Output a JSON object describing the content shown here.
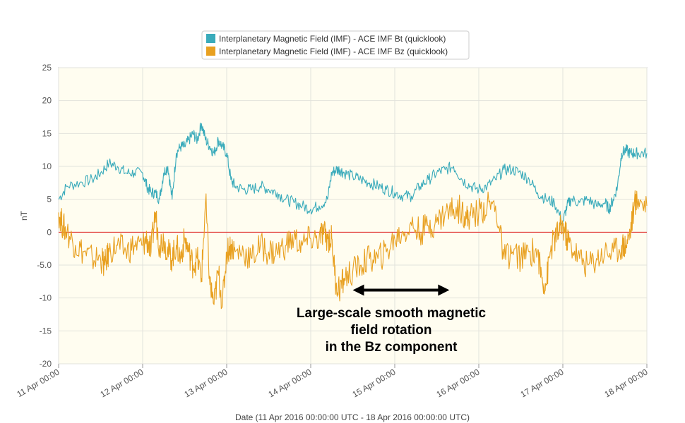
{
  "chart_data": {
    "type": "line",
    "title": "",
    "xlabel": "Date (11 Apr 2016 00:00:00 UTC - 18 Apr 2016 00:00:00 UTC)",
    "ylabel": "nT",
    "ylim": [
      -20,
      25
    ],
    "xlim_days": [
      0,
      7
    ],
    "y_ticks": [
      "25",
      "20",
      "15",
      "10",
      "5",
      "0",
      "-5.0",
      "-10",
      "-15",
      "-20"
    ],
    "x_ticks": [
      "11 Apr 00:00",
      "12 Apr 00:00",
      "13 Apr 00:00",
      "14 Apr 00:00",
      "15 Apr 00:00",
      "16 Apr 00:00",
      "17 Apr 00:00",
      "18 Apr 00:00"
    ],
    "grid": true,
    "legend": "top",
    "background": "#fffdf0",
    "reference_line": {
      "y": 0,
      "color": "#e02020"
    },
    "series": [
      {
        "name": "Interplanetary Magnetic Field (IMF) - ACE IMF Bt (quicklook)",
        "color": "#3aabbb",
        "x": [
          0.0,
          0.1,
          0.25,
          0.4,
          0.5,
          0.6,
          0.7,
          0.8,
          0.9,
          1.0,
          1.05,
          1.1,
          1.15,
          1.2,
          1.25,
          1.3,
          1.35,
          1.4,
          1.45,
          1.5,
          1.55,
          1.6,
          1.65,
          1.7,
          1.75,
          1.8,
          1.85,
          1.9,
          1.95,
          2.0,
          2.05,
          2.1,
          2.2,
          2.3,
          2.4,
          2.5,
          2.6,
          2.7,
          2.8,
          2.9,
          3.0,
          3.1,
          3.2,
          3.25,
          3.3,
          3.35,
          3.4,
          3.5,
          3.6,
          3.7,
          3.8,
          3.9,
          4.0,
          4.1,
          4.2,
          4.3,
          4.4,
          4.5,
          4.6,
          4.7,
          4.8,
          4.9,
          5.0,
          5.1,
          5.2,
          5.3,
          5.4,
          5.5,
          5.6,
          5.7,
          5.8,
          5.9,
          6.0,
          6.05,
          6.1,
          6.2,
          6.3,
          6.4,
          6.5,
          6.55,
          6.6,
          6.65,
          6.7,
          6.75,
          6.8,
          6.85,
          6.9,
          7.0
        ],
        "y": [
          5,
          7,
          7.5,
          8,
          9,
          10.5,
          10,
          9,
          9,
          9,
          7,
          6,
          6,
          5,
          9,
          10,
          5,
          12,
          13,
          13,
          14,
          15,
          14,
          16.5,
          14,
          13,
          12,
          14,
          13,
          12,
          8,
          7,
          6.5,
          6.5,
          7,
          6.5,
          6,
          5,
          4.5,
          4,
          3.5,
          4,
          5,
          9,
          9.5,
          9.5,
          9,
          8.5,
          8,
          7.5,
          7,
          6.5,
          6,
          5.5,
          5.5,
          7,
          8,
          9,
          9.5,
          10,
          8,
          7,
          6.5,
          7,
          8,
          9.5,
          9.5,
          9,
          8,
          6,
          5,
          4.5,
          1.5,
          4,
          5,
          4.5,
          5,
          4,
          4.5,
          3.5,
          5,
          7,
          12,
          12.5,
          12,
          12,
          12,
          12
        ]
      },
      {
        "name": "Interplanetary Magnetic Field (IMF) - ACE IMF Bz (quicklook)",
        "color": "#e8a020",
        "x": [
          0.0,
          0.05,
          0.1,
          0.2,
          0.3,
          0.4,
          0.5,
          0.55,
          0.6,
          0.7,
          0.8,
          0.9,
          1.0,
          1.05,
          1.1,
          1.15,
          1.2,
          1.25,
          1.3,
          1.35,
          1.4,
          1.45,
          1.5,
          1.55,
          1.6,
          1.65,
          1.7,
          1.75,
          1.8,
          1.85,
          1.9,
          1.95,
          2.0,
          2.05,
          2.1,
          2.2,
          2.3,
          2.4,
          2.5,
          2.6,
          2.7,
          2.8,
          2.9,
          3.0,
          3.1,
          3.15,
          3.2,
          3.25,
          3.3,
          3.35,
          3.4,
          3.5,
          3.6,
          3.7,
          3.8,
          3.9,
          4.0,
          4.1,
          4.2,
          4.3,
          4.4,
          4.5,
          4.6,
          4.7,
          4.8,
          4.85,
          4.9,
          5.0,
          5.1,
          5.2,
          5.3,
          5.4,
          5.5,
          5.6,
          5.7,
          5.75,
          5.8,
          5.85,
          5.9,
          5.95,
          6.0,
          6.05,
          6.1,
          6.2,
          6.3,
          6.4,
          6.5,
          6.6,
          6.7,
          6.75,
          6.8,
          6.85,
          6.9,
          7.0
        ],
        "y": [
          3,
          1,
          0,
          -2,
          -3,
          -4,
          -4,
          -5,
          -3,
          -2,
          -3,
          -2,
          -2,
          -1,
          -3,
          3,
          -2,
          -1,
          -3,
          -4,
          -2,
          -4,
          -1,
          -3,
          -5,
          -4,
          -7,
          5,
          -8,
          -11,
          -6,
          -11,
          -3,
          -2,
          -3,
          -3,
          -4,
          -2,
          -3,
          -3,
          -2,
          -1,
          -2,
          -1,
          -1,
          0,
          -1,
          -1,
          -8,
          -8.5,
          -7,
          -6,
          -5,
          -4,
          -4,
          -3,
          -1,
          0,
          1,
          0,
          1,
          1.5,
          3,
          3.5,
          3.5,
          2,
          2.5,
          3,
          4,
          4,
          -4,
          -3,
          -4,
          -3,
          -3,
          -7,
          -8,
          -3,
          -1,
          0,
          1,
          -1,
          -2,
          -4,
          -5,
          -4,
          -3,
          -3,
          -2,
          -2,
          0,
          4,
          5,
          4
        ]
      }
    ],
    "annotation": {
      "lines": [
        "Large-scale smooth magnetic",
        "field rotation",
        "in the Bz component"
      ],
      "arrow_from_day": 3.5,
      "arrow_to_day": 4.65,
      "arrow_y": -8.8
    }
  }
}
